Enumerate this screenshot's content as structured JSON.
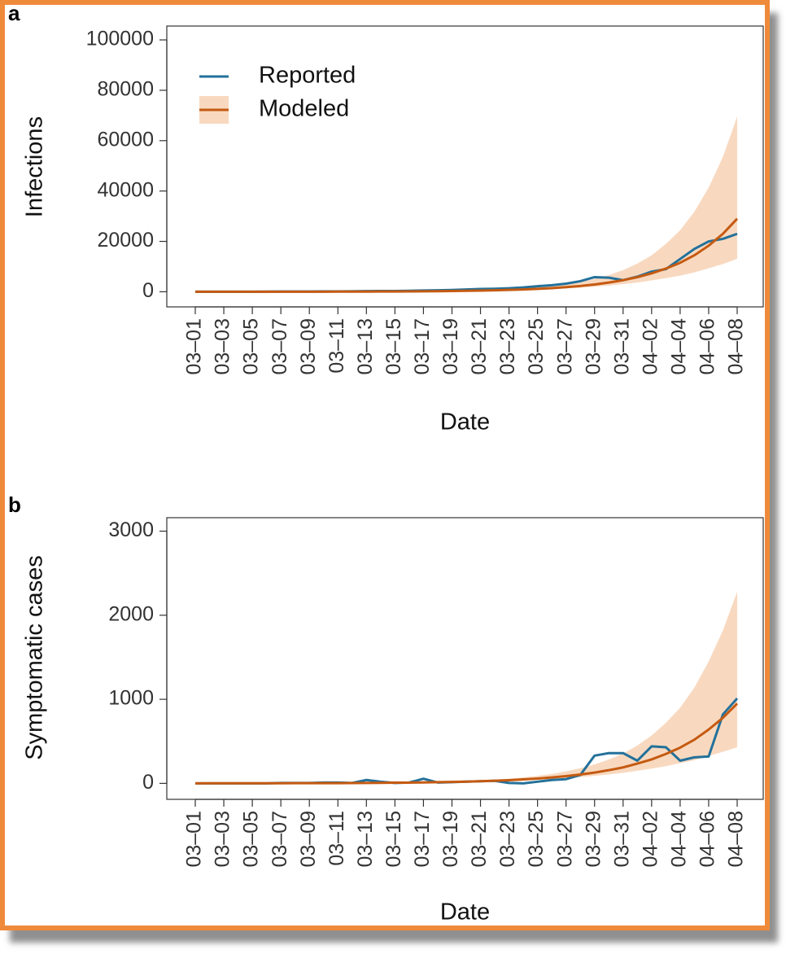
{
  "chart_data": [
    {
      "type": "line",
      "panel_label": "a",
      "ylabel": "Infections",
      "xlabel": "Date",
      "categories": [
        "03–01",
        null,
        "03–03",
        null,
        "03–05",
        null,
        "03–07",
        null,
        "03–09",
        null,
        "03–11",
        null,
        "03–13",
        null,
        "03–15",
        null,
        "03–17",
        null,
        "03–19",
        null,
        "03–21",
        null,
        "03–23",
        null,
        "03–25",
        null,
        "03–27",
        null,
        "03–29",
        null,
        "03–31",
        null,
        "04–02",
        null,
        "04–04",
        null,
        "04–06",
        null,
        "04–08"
      ],
      "series": [
        {
          "name": "Reported",
          "color": "#23719a",
          "values": [
            0,
            0,
            0,
            0,
            0,
            50,
            100,
            100,
            100,
            150,
            150,
            200,
            250,
            300,
            300,
            400,
            500,
            600,
            700,
            900,
            1100,
            1200,
            1400,
            1700,
            2200,
            2600,
            3200,
            4200,
            5800,
            5600,
            4600,
            6000,
            8000,
            9000,
            13000,
            17000,
            20000,
            21000,
            23000
          ]
        },
        {
          "name": "Modeled",
          "color": "#c55a11",
          "band_color": "#f8d9c0",
          "values": [
            5,
            6,
            7,
            9,
            12,
            15,
            18,
            23,
            29,
            37,
            46,
            58,
            73,
            92,
            115,
            145,
            183,
            230,
            290,
            365,
            460,
            580,
            730,
            920,
            1150,
            1450,
            1830,
            2300,
            2900,
            3650,
            4600,
            5800,
            7300,
            9200,
            11500,
            14500,
            18300,
            23000,
            29000
          ],
          "upper": [
            7,
            8,
            9,
            12,
            16,
            20,
            23,
            30,
            38,
            48,
            60,
            75,
            95,
            120,
            150,
            189,
            238,
            300,
            377,
            475,
            640,
            830,
            1070,
            1400,
            1800,
            2300,
            3000,
            3900,
            5100,
            6600,
            8600,
            11200,
            14500,
            19000,
            24400,
            31800,
            41400,
            53600,
            69600
          ],
          "lower": [
            4,
            5,
            6,
            8,
            11,
            13,
            16,
            20,
            26,
            33,
            40,
            51,
            64,
            80,
            100,
            128,
            160,
            200,
            255,
            320,
            390,
            480,
            600,
            740,
            900,
            1100,
            1350,
            1650,
            2000,
            2500,
            3000,
            3650,
            4500,
            5400,
            6400,
            7700,
            9300,
            11000,
            13100
          ]
        }
      ],
      "ylim": [
        -6000,
        105500
      ],
      "yticks": [
        0,
        20000,
        40000,
        60000,
        80000,
        100000
      ],
      "legend": "upper left"
    },
    {
      "type": "line",
      "panel_label": "b",
      "ylabel": "Symptomatic cases",
      "xlabel": "Date",
      "categories": [
        "03–01",
        null,
        "03–03",
        null,
        "03–05",
        null,
        "03–07",
        null,
        "03–09",
        null,
        "03–11",
        null,
        "03–13",
        null,
        "03–15",
        null,
        "03–17",
        null,
        "03–19",
        null,
        "03–21",
        null,
        "03–23",
        null,
        "03–25",
        null,
        "03–27",
        null,
        "03–29",
        null,
        "03–31",
        null,
        "04–02",
        null,
        "04–04",
        null,
        "04–06",
        null,
        "04–08"
      ],
      "series": [
        {
          "name": "Reported",
          "color": "#23719a",
          "values": [
            0,
            0,
            0,
            0,
            0,
            0,
            5,
            5,
            5,
            10,
            10,
            5,
            40,
            20,
            5,
            10,
            55,
            10,
            15,
            20,
            25,
            30,
            5,
            0,
            20,
            40,
            50,
            100,
            330,
            360,
            360,
            270,
            440,
            430,
            270,
            310,
            320,
            820,
            1010
          ]
        },
        {
          "name": "Modeled",
          "color": "#c55a11",
          "band_color": "#f8d9c0",
          "values": [
            0,
            1,
            1,
            1,
            1,
            1,
            1,
            2,
            2,
            3,
            3,
            4,
            5,
            6,
            8,
            9,
            11,
            14,
            17,
            21,
            26,
            31,
            38,
            47,
            57,
            70,
            86,
            105,
            128,
            157,
            190,
            235,
            285,
            350,
            425,
            520,
            640,
            780,
            950
          ],
          "upper": [
            0,
            1,
            1,
            1,
            1,
            1,
            1,
            3,
            3,
            4,
            4,
            5,
            7,
            8,
            10,
            12,
            14,
            18,
            22,
            27,
            36,
            44,
            56,
            71,
            89,
            113,
            143,
            180,
            225,
            285,
            355,
            450,
            570,
            720,
            900,
            1140,
            1450,
            1820,
            2280
          ],
          "lower": [
            0,
            1,
            1,
            1,
            1,
            1,
            1,
            2,
            2,
            3,
            3,
            3,
            4,
            5,
            7,
            8,
            10,
            12,
            15,
            18,
            22,
            26,
            31,
            38,
            44,
            53,
            64,
            75,
            90,
            105,
            125,
            150,
            175,
            205,
            240,
            275,
            325,
            375,
            430
          ]
        }
      ],
      "ylim": [
        -190,
        3160
      ],
      "yticks": [
        0,
        1000,
        2000,
        3000
      ]
    }
  ]
}
